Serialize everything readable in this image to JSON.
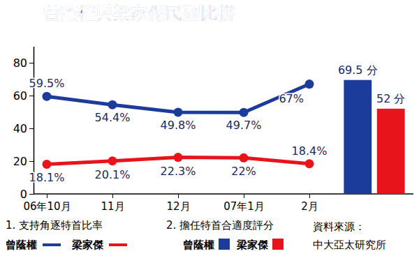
{
  "chart_data": [
    {
      "type": "line",
      "title": "曾蔭權與梁家傑民望比拼",
      "subtitle": "1. 支持角逐特首比率",
      "annotations": [
        "資料來源：",
        "中大亞太研究所"
      ],
      "categories": [
        "06年10月",
        "11月",
        "12月",
        "07年1月",
        "2月"
      ],
      "series": [
        {
          "name": "曾蔭權",
          "color": "#1c3c9c",
          "marker": "circle",
          "values": [
            59.5,
            54.4,
            49.8,
            49.7,
            67
          ],
          "value_labels": [
            "59.5%",
            "54.4%",
            "49.8%",
            "49.7%",
            "67%"
          ]
        },
        {
          "name": "梁家傑",
          "color": "#e8141c",
          "marker": "circle",
          "values": [
            18.1,
            20.1,
            22.3,
            22,
            18.4
          ],
          "value_labels": [
            "18.1%",
            "20.1%",
            "22.3%",
            "22%",
            "18.4%"
          ]
        }
      ],
      "ylim": [
        0,
        90
      ],
      "yticks": [
        0,
        20,
        40,
        60,
        80
      ],
      "data_labels": true
    },
    {
      "type": "bar",
      "subtitle": "2. 擔任特首合適度評分",
      "series": [
        {
          "name": "曾蔭權",
          "color": "#1c3c9c",
          "values": [
            69.5
          ],
          "value_labels": [
            "69.5 分"
          ]
        },
        {
          "name": "梁家傑",
          "color": "#e8141c",
          "values": [
            52
          ],
          "value_labels": [
            "52 分"
          ]
        }
      ],
      "ylim": [
        0,
        90
      ],
      "tick_labels": false,
      "data_labels": true
    }
  ]
}
